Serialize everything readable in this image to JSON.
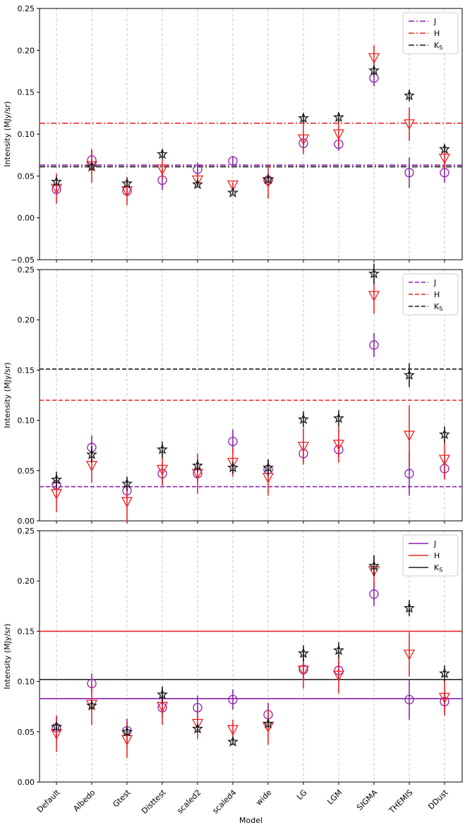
{
  "figure": {
    "xlabel": "Model",
    "models": [
      "Default",
      "Albedo",
      "Gtest",
      "Disttest",
      "scaled2",
      "scaled4",
      "wide",
      "LG",
      "LGM",
      "SIGMA",
      "THEMIS",
      "DDust"
    ]
  },
  "colors": {
    "J": "#8b1fb0",
    "H": "#ee2222",
    "K": "#1a1a1a",
    "grid": "#c8c8c8"
  },
  "chart_data": [
    {
      "type": "scatter",
      "ylabel": "Intensity (MJy/sr)",
      "ylim": [
        -0.05,
        0.25
      ],
      "yticks": [
        "−0.05",
        "0.00",
        "0.05",
        "0.10",
        "0.15",
        "0.20",
        "0.25"
      ],
      "ytick_values": [
        -0.05,
        0.0,
        0.05,
        0.1,
        0.15,
        0.2,
        0.25
      ],
      "grid": "x-dashed",
      "legend": {
        "position": "top-right",
        "linestyle": "dashdot",
        "entries": [
          {
            "key": "J",
            "label": "J"
          },
          {
            "key": "H",
            "label": "H"
          },
          {
            "key": "K",
            "label": "K",
            "sub": "S"
          }
        ]
      },
      "reference_lines": {
        "J": 0.063,
        "H": 0.113,
        "K": 0.061
      },
      "series": [
        {
          "name": "J",
          "marker": "circle",
          "values": [
            0.034,
            0.069,
            0.032,
            0.045,
            0.058,
            0.068,
            0.045,
            0.089,
            0.088,
            0.167,
            0.054,
            0.054
          ],
          "errors": [
            0.005,
            0.012,
            0.006,
            0.012,
            0.008,
            0.006,
            0.008,
            0.008,
            0.008,
            0.01,
            0.018,
            0.012
          ]
        },
        {
          "name": "H",
          "marker": "triangle-down",
          "values": [
            0.035,
            0.062,
            0.032,
            0.058,
            0.045,
            0.039,
            0.043,
            0.094,
            0.1,
            0.191,
            0.112,
            0.071
          ],
          "errors": [
            0.018,
            0.02,
            0.017,
            0.012,
            0.008,
            0.004,
            0.02,
            0.018,
            0.015,
            0.015,
            0.02,
            0.012
          ]
        },
        {
          "name": "K",
          "marker": "star",
          "values": [
            0.043,
            0.061,
            0.041,
            0.076,
            0.04,
            0.03,
            0.046,
            0.119,
            0.12,
            0.176,
            0.146,
            0.082
          ],
          "errors": [
            0.003,
            0.003,
            0.003,
            0.006,
            0.003,
            0.002,
            0.004,
            0.006,
            0.006,
            0.006,
            0.007,
            0.004
          ]
        }
      ]
    },
    {
      "type": "scatter",
      "ylabel": "Intensity (MJy/sr)",
      "ylim": [
        0.0,
        0.25
      ],
      "yticks": [
        "0.00",
        "0.05",
        "0.10",
        "0.15",
        "0.20",
        "0.25"
      ],
      "ytick_values": [
        0.0,
        0.05,
        0.1,
        0.15,
        0.2,
        0.25
      ],
      "grid": "x-dashed",
      "legend": {
        "position": "top-right",
        "linestyle": "dashed",
        "entries": [
          {
            "key": "J",
            "label": "J"
          },
          {
            "key": "H",
            "label": "H"
          },
          {
            "key": "K",
            "label": "K",
            "sub": "S"
          }
        ]
      },
      "reference_lines": {
        "J": 0.034,
        "H": 0.12,
        "K": 0.151
      },
      "series": [
        {
          "name": "J",
          "marker": "circle",
          "values": [
            0.036,
            0.073,
            0.03,
            0.047,
            0.047,
            0.079,
            0.051,
            0.067,
            0.071,
            0.175,
            0.047,
            0.052
          ],
          "errors": [
            0.006,
            0.012,
            0.008,
            0.01,
            0.008,
            0.012,
            0.01,
            0.008,
            0.008,
            0.012,
            0.022,
            0.01
          ]
        },
        {
          "name": "H",
          "marker": "triangle-down",
          "values": [
            0.027,
            0.055,
            0.019,
            0.051,
            0.047,
            0.058,
            0.043,
            0.074,
            0.076,
            0.224,
            0.085,
            0.061
          ],
          "errors": [
            0.018,
            0.017,
            0.02,
            0.016,
            0.02,
            0.014,
            0.018,
            0.018,
            0.018,
            0.018,
            0.03,
            0.02
          ]
        },
        {
          "name": "K",
          "marker": "star",
          "values": [
            0.041,
            0.066,
            0.037,
            0.071,
            0.055,
            0.053,
            0.053,
            0.101,
            0.102,
            0.246,
            0.145,
            0.086
          ],
          "errors": [
            0.008,
            0.008,
            0.007,
            0.008,
            0.006,
            0.006,
            0.008,
            0.008,
            0.008,
            0.01,
            0.012,
            0.008
          ]
        }
      ]
    },
    {
      "type": "scatter",
      "ylabel": "Intensity (MJy/sr)",
      "ylim": [
        0.0,
        0.25
      ],
      "yticks": [
        "0.00",
        "0.05",
        "0.10",
        "0.15",
        "0.20",
        "0.25"
      ],
      "ytick_values": [
        0.0,
        0.05,
        0.1,
        0.15,
        0.2,
        0.25
      ],
      "grid": "x-dashed",
      "legend": {
        "position": "top-right",
        "linestyle": "solid",
        "entries": [
          {
            "key": "J",
            "label": "J"
          },
          {
            "key": "H",
            "label": "H"
          },
          {
            "key": "K",
            "label": "K",
            "sub": "S"
          }
        ]
      },
      "reference_lines": {
        "J": 0.083,
        "H": 0.15,
        "K": 0.102
      },
      "series": [
        {
          "name": "J",
          "marker": "circle",
          "values": [
            0.054,
            0.098,
            0.051,
            0.074,
            0.074,
            0.082,
            0.067,
            0.112,
            0.111,
            0.187,
            0.082,
            0.08
          ],
          "errors": [
            0.012,
            0.01,
            0.012,
            0.01,
            0.012,
            0.01,
            0.012,
            0.01,
            0.01,
            0.012,
            0.02,
            0.01
          ]
        },
        {
          "name": "H",
          "marker": "triangle-down",
          "values": [
            0.048,
            0.077,
            0.042,
            0.075,
            0.058,
            0.052,
            0.055,
            0.111,
            0.106,
            0.21,
            0.127,
            0.084
          ],
          "errors": [
            0.018,
            0.02,
            0.018,
            0.018,
            0.015,
            0.01,
            0.018,
            0.018,
            0.018,
            0.016,
            0.022,
            0.018
          ]
        },
        {
          "name": "K",
          "marker": "star",
          "values": [
            0.055,
            0.076,
            0.05,
            0.087,
            0.053,
            0.04,
            0.058,
            0.128,
            0.131,
            0.215,
            0.173,
            0.108
          ],
          "errors": [
            0.004,
            0.004,
            0.004,
            0.008,
            0.004,
            0.003,
            0.004,
            0.008,
            0.008,
            0.01,
            0.008,
            0.008
          ]
        }
      ]
    }
  ]
}
